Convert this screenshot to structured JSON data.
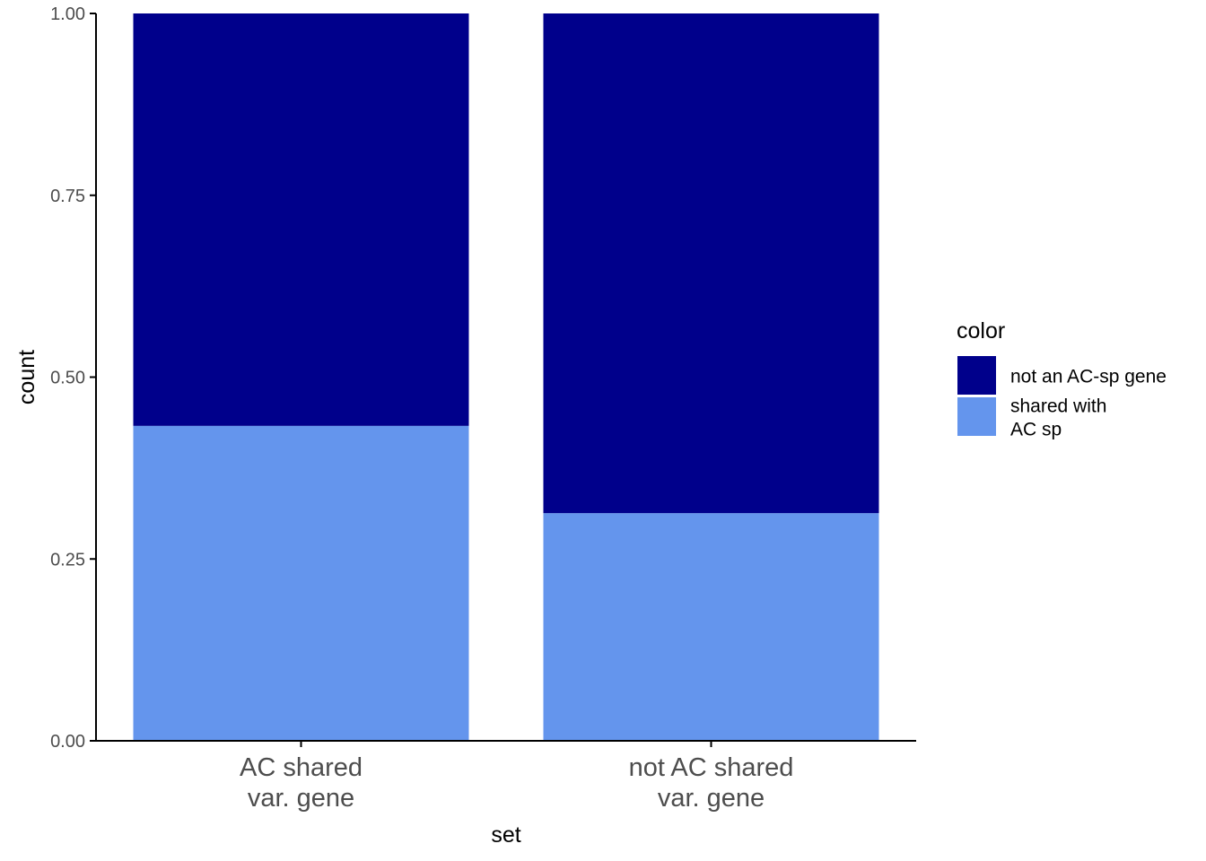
{
  "chart_data": {
    "type": "bar",
    "stacked": true,
    "xlabel": "set",
    "ylabel": "count",
    "categories": [
      [
        "AC shared",
        "var. gene"
      ],
      [
        "not AC shared",
        "var. gene"
      ]
    ],
    "ylim": [
      0,
      1
    ],
    "yticks": [
      "0.00",
      "0.25",
      "0.50",
      "0.75",
      "1.00"
    ],
    "ytick_values": [
      0,
      0.25,
      0.5,
      0.75,
      1.0
    ],
    "series": [
      {
        "name": [
          "shared with",
          "AC sp"
        ],
        "color": "#6495ED",
        "values": [
          0.433,
          0.313
        ]
      },
      {
        "name": [
          "not an AC-sp gene"
        ],
        "color": "#00008B",
        "values": [
          0.567,
          0.687
        ]
      }
    ],
    "legend": {
      "title": "color",
      "placement": "right",
      "order": [
        1,
        0
      ]
    },
    "grid": false
  }
}
